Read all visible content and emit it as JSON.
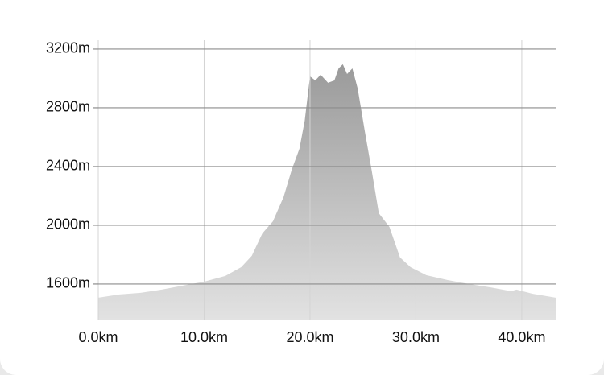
{
  "chart_data": {
    "type": "area",
    "x": [
      0,
      2,
      4,
      6,
      8,
      10,
      12,
      13.5,
      14.5,
      15.5,
      16.5,
      17.5,
      18.3,
      19,
      19.5,
      20,
      20.5,
      21,
      21.7,
      22.3,
      22.7,
      23.1,
      23.5,
      24,
      24.5,
      25.2,
      25.8,
      26.5,
      27.5,
      28.5,
      29.5,
      31,
      33,
      35,
      37,
      39,
      39.5,
      41,
      43.2
    ],
    "values": [
      1507,
      1529,
      1540,
      1562,
      1589,
      1616,
      1655,
      1715,
      1792,
      1945,
      2027,
      2192,
      2384,
      2521,
      2712,
      3014,
      2986,
      3025,
      2970,
      2986,
      3068,
      3096,
      3030,
      3068,
      2932,
      2630,
      2384,
      2082,
      1989,
      1781,
      1715,
      1660,
      1627,
      1600,
      1578,
      1551,
      1562,
      1534,
      1507
    ],
    "color": "#9a9a9a",
    "xlim": [
      0,
      43.2
    ],
    "xticks": [
      {
        "value": 0,
        "label": "0.0km"
      },
      {
        "value": 10,
        "label": "10.0km"
      },
      {
        "value": 20,
        "label": "20.0km"
      },
      {
        "value": 30,
        "label": "30.0km"
      },
      {
        "value": 40,
        "label": "40.0km"
      }
    ],
    "ylim": [
      1353,
      3260
    ],
    "yticks": [
      {
        "value": 1600,
        "label": "1600m"
      },
      {
        "value": 2000,
        "label": "2000m"
      },
      {
        "value": 2400,
        "label": "2400m"
      },
      {
        "value": 2800,
        "label": "2800m"
      },
      {
        "value": 3200,
        "label": "3200m"
      }
    ],
    "grid": true
  }
}
